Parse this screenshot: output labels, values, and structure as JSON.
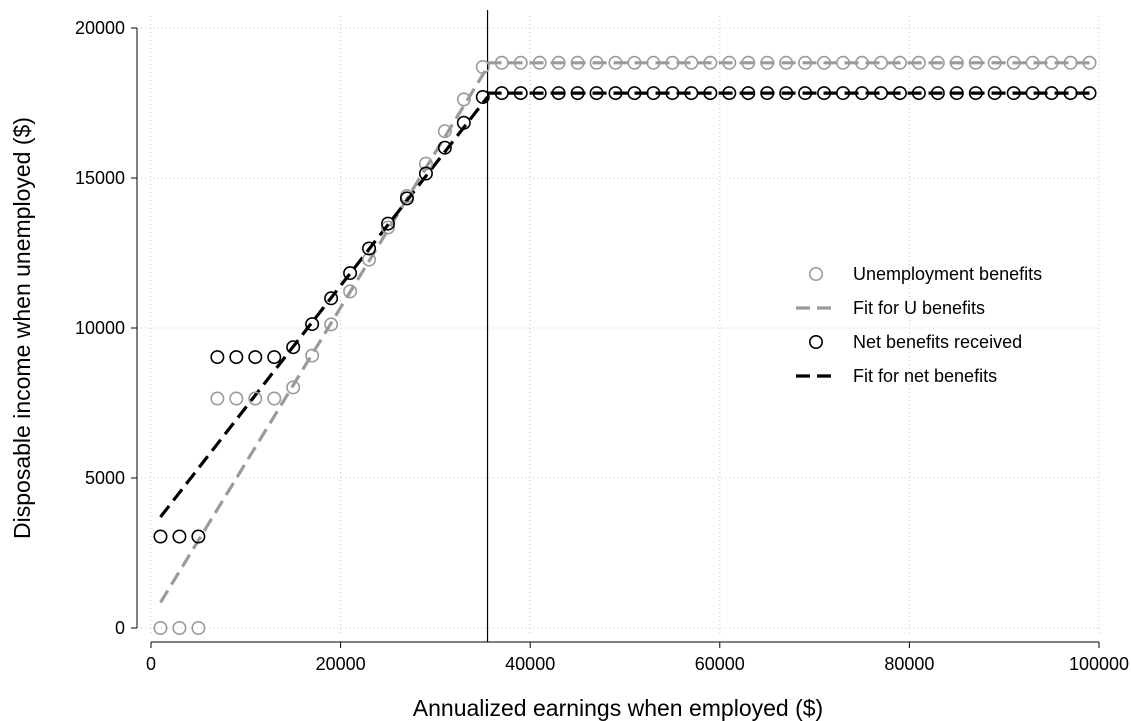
{
  "chart_data": {
    "type": "scatter",
    "title": "",
    "xlabel": "Annualized earnings when employed ($)",
    "ylabel": "Disposable income when unemployed ($)",
    "xlim": [
      0,
      100000
    ],
    "ylim": [
      0,
      20000
    ],
    "xticks": [
      0,
      20000,
      40000,
      60000,
      80000,
      100000
    ],
    "yticks": [
      0,
      5000,
      10000,
      15000,
      20000
    ],
    "xtick_labels": [
      "0",
      "20000",
      "40000",
      "60000",
      "80000",
      "100000"
    ],
    "ytick_labels": [
      "0",
      "5000",
      "10000",
      "15000",
      "20000"
    ],
    "grid": true,
    "legend_position": "right",
    "vertical_reference_line_x": 35500,
    "colors": {
      "unemployment_benefits": "#9a9a9a",
      "net_benefits": "#000000"
    },
    "series": [
      {
        "name": "Unemployment benefits",
        "kind": "scatter",
        "marker": "hollow-circle",
        "color": "#9a9a9a",
        "x": [
          1000,
          3000,
          5000,
          7000,
          9000,
          11000,
          13000,
          15000,
          17000,
          19000,
          21000,
          23000,
          25000,
          27000,
          29000,
          31000,
          33000,
          35000,
          37000,
          39000,
          41000,
          43000,
          45000,
          47000,
          49000,
          51000,
          53000,
          55000,
          57000,
          59000,
          61000,
          63000,
          65000,
          67000,
          69000,
          71000,
          73000,
          75000,
          77000,
          79000,
          81000,
          83000,
          85000,
          87000,
          89000,
          91000,
          93000,
          95000,
          97000,
          99000
        ],
        "y": [
          0,
          0,
          0,
          7650,
          7650,
          7650,
          7650,
          8020,
          9080,
          10120,
          11220,
          12280,
          13350,
          14400,
          15480,
          16560,
          17620,
          18700,
          18840,
          18840,
          18840,
          18840,
          18840,
          18840,
          18840,
          18840,
          18840,
          18840,
          18840,
          18840,
          18840,
          18840,
          18840,
          18840,
          18840,
          18840,
          18840,
          18840,
          18840,
          18840,
          18840,
          18840,
          18840,
          18840,
          18840,
          18840,
          18840,
          18840,
          18840,
          18840
        ]
      },
      {
        "name": "Fit for U benefits",
        "kind": "dashed-line",
        "color": "#9a9a9a",
        "segments": [
          {
            "x": [
              1000,
              35500
            ],
            "y": [
              850,
              18700
            ]
          },
          {
            "x": [
              35500,
              99000
            ],
            "y": [
              18840,
              18840
            ]
          }
        ]
      },
      {
        "name": "Net benefits received",
        "kind": "scatter",
        "marker": "hollow-circle",
        "color": "#000000",
        "x": [
          1000,
          3000,
          5000,
          7000,
          9000,
          11000,
          13000,
          15000,
          17000,
          19000,
          21000,
          23000,
          25000,
          27000,
          29000,
          31000,
          33000,
          35000,
          37000,
          39000,
          41000,
          43000,
          45000,
          47000,
          49000,
          51000,
          53000,
          55000,
          57000,
          59000,
          61000,
          63000,
          65000,
          67000,
          69000,
          71000,
          73000,
          75000,
          77000,
          79000,
          81000,
          83000,
          85000,
          87000,
          89000,
          91000,
          93000,
          95000,
          97000,
          99000
        ],
        "y": [
          3050,
          3050,
          3050,
          9030,
          9030,
          9030,
          9030,
          9360,
          10130,
          10990,
          11830,
          12650,
          13480,
          14320,
          15150,
          16010,
          16840,
          17700,
          17830,
          17830,
          17830,
          17830,
          17830,
          17830,
          17830,
          17830,
          17830,
          17830,
          17830,
          17830,
          17830,
          17830,
          17830,
          17830,
          17830,
          17830,
          17830,
          17830,
          17830,
          17830,
          17830,
          17830,
          17830,
          17830,
          17830,
          17830,
          17830,
          17830,
          17830,
          17830
        ]
      },
      {
        "name": "Fit for net benefits",
        "kind": "dashed-line",
        "color": "#000000",
        "segments": [
          {
            "x": [
              1000,
              35500
            ],
            "y": [
              3700,
              17700
            ]
          },
          {
            "x": [
              35500,
              99000
            ],
            "y": [
              17830,
              17830
            ]
          }
        ]
      }
    ]
  }
}
